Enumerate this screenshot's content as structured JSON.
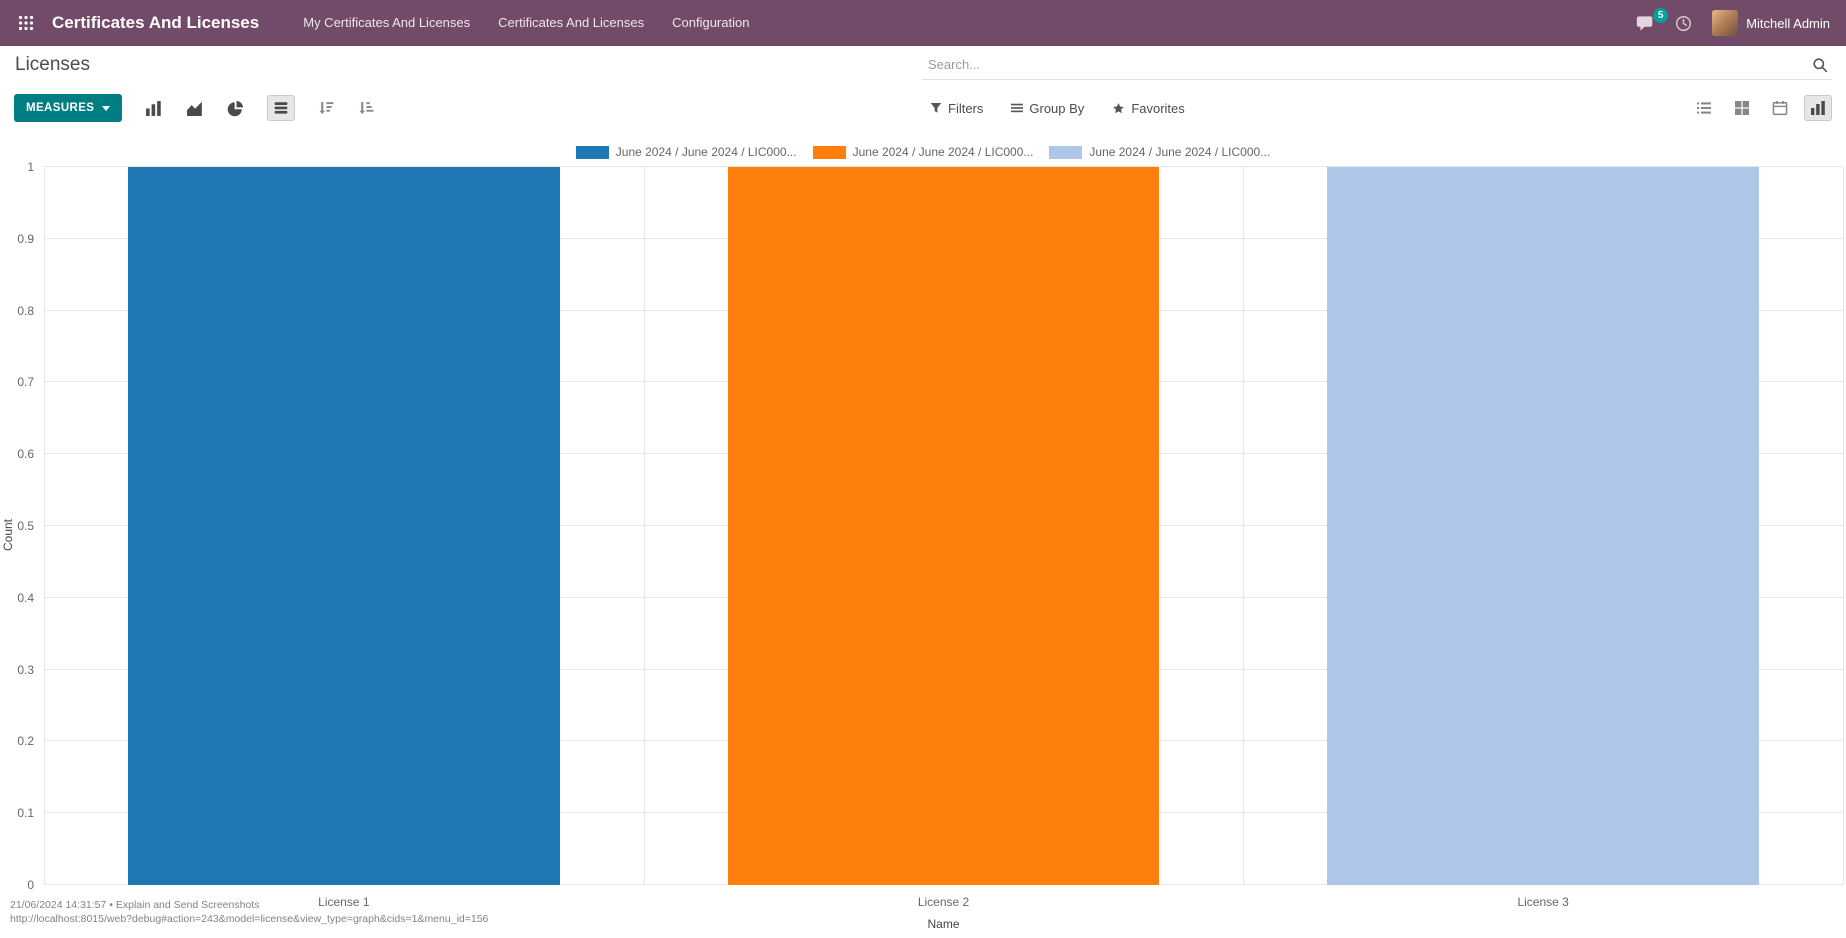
{
  "topbar": {
    "app_title": "Certificates And Licenses",
    "menus": [
      "My Certificates And Licenses",
      "Certificates And Licenses",
      "Configuration"
    ],
    "message_count": "5",
    "user_name": "Mitchell Admin"
  },
  "breadcrumb": {
    "title": "Licenses"
  },
  "search": {
    "placeholder": "Search..."
  },
  "toolbar": {
    "measures_label": "MEASURES",
    "filters_label": "Filters",
    "group_by_label": "Group By",
    "favorites_label": "Favorites"
  },
  "chart_data": {
    "type": "bar",
    "title": "",
    "categories": [
      "License 1",
      "License 2",
      "License 3"
    ],
    "series": [
      {
        "name": "June 2024 / June 2024 / LIC000...",
        "color": "#1f77b4",
        "values": [
          1,
          0,
          0
        ]
      },
      {
        "name": "June 2024 / June 2024 / LIC000...",
        "color": "#ff7f0e",
        "values": [
          0,
          1,
          0
        ]
      },
      {
        "name": "June 2024 / June 2024 / LIC000...",
        "color": "#aec7e8",
        "values": [
          0,
          0,
          1
        ]
      }
    ],
    "xlabel": "Name",
    "ylabel": "Count",
    "ylim": [
      0,
      1
    ],
    "yticks": [
      "0",
      "0.1",
      "0.2",
      "0.3",
      "0.4",
      "0.5",
      "0.6",
      "0.7",
      "0.8",
      "0.9",
      "1"
    ],
    "legend_position": "top",
    "grid": true
  },
  "debug_overlay": {
    "line1": "21/06/2024 14:31:57 • Explain and Send Screenshots",
    "line2": "http://localhost:8015/web?debug#action=243&model=license&view_type=graph&cids=1&menu_id=156"
  },
  "colors": {
    "topbar_bg": "#714B67",
    "primary_button": "#017e84",
    "badge": "#00a09d",
    "bar_blue": "#1f77b4",
    "bar_orange": "#ff7f0e",
    "bar_lightblue": "#aec7e8"
  }
}
